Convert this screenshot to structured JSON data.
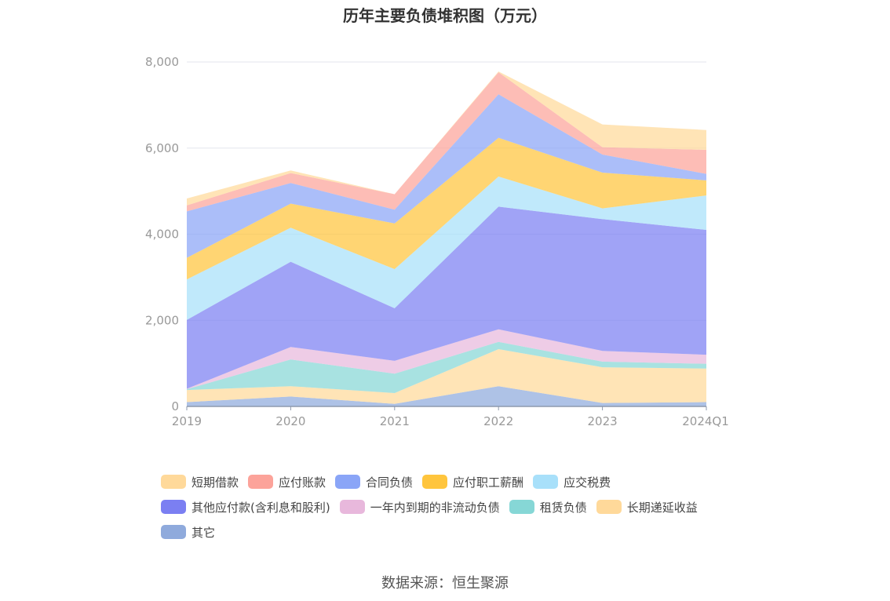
{
  "chart_data": {
    "type": "area",
    "stacked": true,
    "title": "历年主要负债堆积图（万元）",
    "categories": [
      "2019",
      "2020",
      "2021",
      "2022",
      "2023",
      "2024Q1"
    ],
    "ylim": [
      0,
      8000
    ],
    "yticks": [
      0,
      2000,
      4000,
      6000,
      8000
    ],
    "ytick_labels": [
      "0",
      "2,000",
      "4,000",
      "6,000",
      "8,000"
    ],
    "grid": true,
    "legend_position": "bottom",
    "series": [
      {
        "name": "其它",
        "color": "#8faadc",
        "values": [
          100,
          230,
          60,
          470,
          80,
          100
        ]
      },
      {
        "name": "长期递延收益",
        "color": "#ffd99a",
        "values": [
          280,
          240,
          250,
          860,
          830,
          780
        ]
      },
      {
        "name": "租赁负债",
        "color": "#86d7d6",
        "values": [
          20,
          620,
          450,
          170,
          130,
          110
        ]
      },
      {
        "name": "一年内到期的非流动负债",
        "color": "#e8b8dc",
        "values": [
          10,
          290,
          300,
          290,
          250,
          210
        ]
      },
      {
        "name": "其他应付款(含利息和股利)",
        "color": "#7b7ff2",
        "values": [
          1600,
          1980,
          1220,
          2850,
          3060,
          2900
        ]
      },
      {
        "name": "应交税费",
        "color": "#a8e0fa",
        "values": [
          940,
          790,
          910,
          700,
          250,
          800
        ]
      },
      {
        "name": "应付职工薪酬",
        "color": "#ffc53d",
        "values": [
          500,
          560,
          1060,
          900,
          830,
          350
        ]
      },
      {
        "name": "合同负债",
        "color": "#8aa5f7",
        "values": [
          1080,
          480,
          320,
          1010,
          420,
          150
        ]
      },
      {
        "name": "应付账款",
        "color": "#fca39a",
        "values": [
          140,
          230,
          360,
          510,
          170,
          560
        ]
      },
      {
        "name": "短期借款",
        "color": "#ffd99a",
        "values": [
          160,
          60,
          0,
          20,
          530,
          460
        ]
      }
    ]
  },
  "legend_rows": [
    [
      9,
      8,
      7,
      6,
      5
    ],
    [
      4,
      3,
      2,
      1
    ],
    [
      0
    ]
  ],
  "source": "数据来源：恒生聚源"
}
